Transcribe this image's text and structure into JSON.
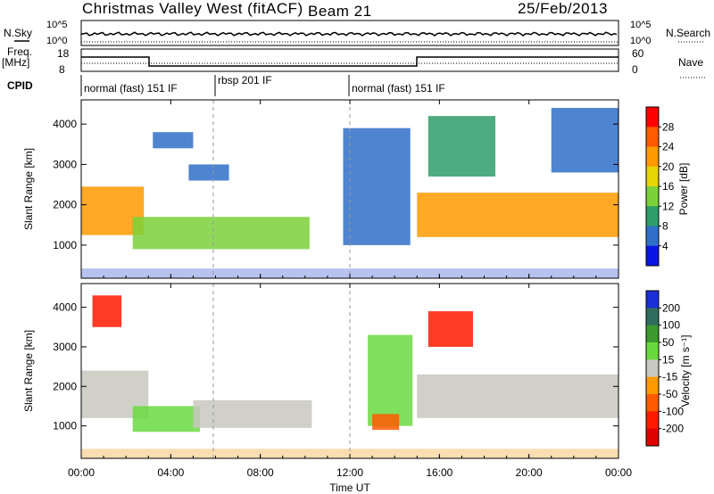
{
  "header": {
    "title": "Christmas Valley West (fitACF)",
    "beam": "Beam 21",
    "date": "25/Feb/2013"
  },
  "strip_labels": {
    "nsky": "N.Sky",
    "nsky_ticks": [
      "10^5",
      "10^0"
    ],
    "nsearch": "N.Search",
    "nsearch_ticks": [
      "10^5",
      "10^0"
    ],
    "freq_line1": "Freq.",
    "freq_line2": "[MHz]",
    "freq_ticks": [
      "18",
      "8"
    ],
    "nave": "Nave",
    "nave_ticks": [
      "60",
      "0"
    ],
    "cpid": "CPID"
  },
  "cpid_segments": [
    {
      "label": "normal (fast) 151 IF",
      "start_hour": 0,
      "end_hour": 5.9
    },
    {
      "label": "rbsp 201 IF",
      "start_hour": 5.9,
      "end_hour": 12.0
    },
    {
      "label": "normal (fast) 151 IF",
      "start_hour": 12.0,
      "end_hour": 24
    }
  ],
  "x_axis": {
    "label": "Time UT",
    "ticks": [
      "00:00",
      "04:00",
      "08:00",
      "12:00",
      "16:00",
      "20:00",
      "00:00"
    ],
    "tick_hours": [
      0,
      4,
      8,
      12,
      16,
      20,
      24
    ],
    "range_hours": [
      0,
      24
    ]
  },
  "chart_data": [
    {
      "type": "heatmap",
      "name": "power",
      "ylabel": "Slant Range [km]",
      "yticks": [
        "1000",
        "2000",
        "3000",
        "4000"
      ],
      "ytick_values": [
        1000,
        2000,
        3000,
        4000
      ],
      "ylim": [
        180,
        4600
      ],
      "colorbar_label": "Power [dB]",
      "colorbar_ticks": [
        "28",
        "24",
        "20",
        "16",
        "12",
        "8",
        "4"
      ],
      "colorbar_colors": [
        "#ff0000",
        "#ff5a00",
        "#ff9a00",
        "#e8d400",
        "#7bd13a",
        "#2f9e6a",
        "#2f6fc8",
        "#0b14e6"
      ],
      "regions": [
        {
          "start_hour": 0.0,
          "end_hour": 2.8,
          "range_min": 1250,
          "range_max": 2450,
          "value": 22
        },
        {
          "start_hour": 2.3,
          "end_hour": 10.2,
          "range_min": 900,
          "range_max": 1700,
          "value": 14
        },
        {
          "start_hour": 3.2,
          "end_hour": 5.0,
          "range_min": 3400,
          "range_max": 3800,
          "value": 6
        },
        {
          "start_hour": 4.8,
          "end_hour": 6.6,
          "range_min": 2600,
          "range_max": 3000,
          "value": 5
        },
        {
          "start_hour": 11.7,
          "end_hour": 14.7,
          "range_min": 1000,
          "range_max": 3900,
          "value": 5
        },
        {
          "start_hour": 15.0,
          "end_hour": 24.0,
          "range_min": 1200,
          "range_max": 2300,
          "value": 20
        },
        {
          "start_hour": 15.5,
          "end_hour": 18.5,
          "range_min": 2700,
          "range_max": 4200,
          "value": 10
        },
        {
          "start_hour": 21.0,
          "end_hour": 24.0,
          "range_min": 2800,
          "range_max": 4400,
          "value": 5
        }
      ]
    },
    {
      "type": "heatmap",
      "name": "velocity",
      "ylabel": "Slant Range [km]",
      "yticks": [
        "1000",
        "2000",
        "3000",
        "4000"
      ],
      "ytick_values": [
        1000,
        2000,
        3000,
        4000
      ],
      "ylim": [
        180,
        4600
      ],
      "colorbar_label": "Velocity [m s⁻¹]",
      "colorbar_ticks": [
        "200",
        "100",
        "50",
        "15",
        "-15",
        "-50",
        "-100",
        "-200"
      ],
      "colorbar_colors": [
        "#1a2fd6",
        "#2f6e5e",
        "#3c9a2f",
        "#6ad93f",
        "#c8c8c0",
        "#ff9a00",
        "#ff5a00",
        "#ff1a00",
        "#e00000"
      ],
      "regions": [
        {
          "start_hour": 0.0,
          "end_hour": 3.0,
          "range_min": 1200,
          "range_max": 2400,
          "value": 0
        },
        {
          "start_hour": 2.3,
          "end_hour": 5.3,
          "range_min": 850,
          "range_max": 1500,
          "value": 40
        },
        {
          "start_hour": 5.0,
          "end_hour": 10.3,
          "range_min": 950,
          "range_max": 1650,
          "value": 0
        },
        {
          "start_hour": 0.5,
          "end_hour": 1.8,
          "range_min": 3500,
          "range_max": 4300,
          "value": -150
        },
        {
          "start_hour": 12.8,
          "end_hour": 14.8,
          "range_min": 1000,
          "range_max": 3300,
          "value": 40
        },
        {
          "start_hour": 13.0,
          "end_hour": 14.2,
          "range_min": 900,
          "range_max": 1300,
          "value": -60
        },
        {
          "start_hour": 15.0,
          "end_hour": 24.0,
          "range_min": 1200,
          "range_max": 2300,
          "value": 0
        },
        {
          "start_hour": 15.5,
          "end_hour": 17.5,
          "range_min": 3000,
          "range_max": 3900,
          "value": -150
        }
      ]
    }
  ]
}
